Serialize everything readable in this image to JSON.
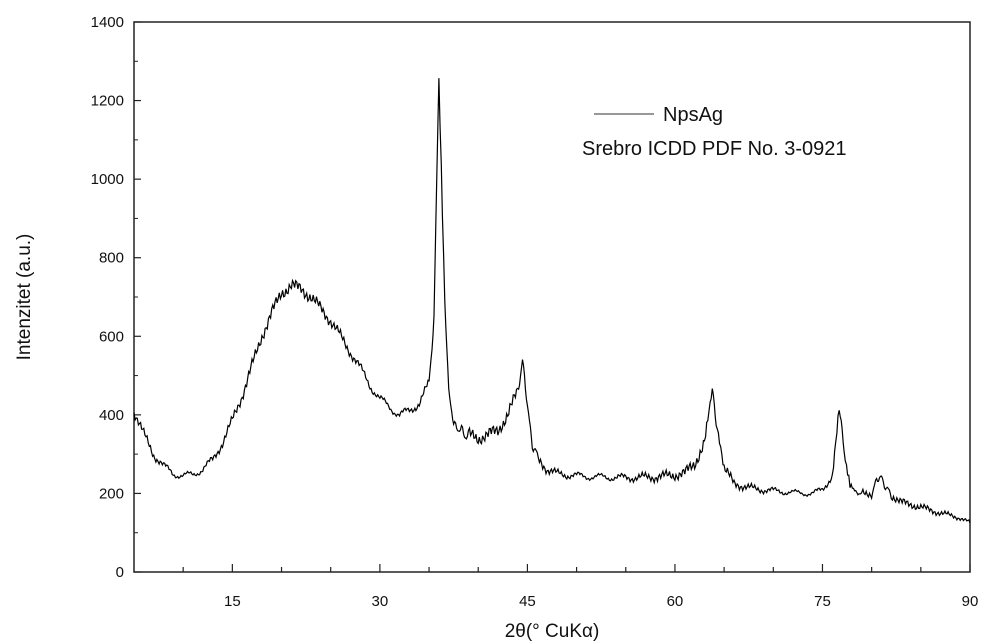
{
  "chart_data": {
    "type": "line",
    "title": "",
    "xlabel": "2θ(° CuKα)",
    "ylabel": "Intenzitet (a.u.)",
    "xlim": [
      5,
      90
    ],
    "ylim": [
      0,
      1400
    ],
    "x_ticks": [
      15,
      30,
      45,
      60,
      75,
      90
    ],
    "y_ticks": [
      0,
      200,
      400,
      600,
      800,
      1000,
      1200,
      1400
    ],
    "grid": false,
    "legend_position": "top-right",
    "series": [
      {
        "name": "NpsAg",
        "color": "#000000",
        "x": [
          5,
          6,
          7,
          8,
          9,
          10,
          11,
          12,
          13,
          14,
          15,
          16,
          17,
          18,
          19,
          20,
          21,
          22,
          23,
          24,
          25,
          26,
          27,
          28,
          29,
          30,
          31,
          32,
          33,
          34,
          35,
          35.5,
          36,
          36.6,
          37,
          37.5,
          38,
          38.5,
          39,
          40,
          41,
          42,
          43,
          44,
          44.5,
          45,
          45.5,
          46,
          47,
          48,
          50,
          52,
          55,
          58,
          60,
          61,
          62,
          63,
          63.8,
          64.3,
          65,
          66,
          68,
          70,
          72,
          74,
          75,
          76,
          76.7,
          77.2,
          77.8,
          78.5,
          79,
          80,
          80.5,
          81,
          81.5,
          82,
          83,
          85,
          87,
          89,
          90
        ],
        "y": [
          410,
          350,
          300,
          270,
          250,
          245,
          248,
          262,
          285,
          330,
          385,
          450,
          525,
          600,
          660,
          710,
          730,
          720,
          700,
          670,
          640,
          600,
          560,
          520,
          475,
          440,
          420,
          400,
          410,
          430,
          480,
          650,
          1260,
          700,
          450,
          385,
          360,
          355,
          350,
          340,
          350,
          360,
          400,
          460,
          540,
          420,
          330,
          290,
          262,
          250,
          245,
          242,
          240,
          242,
          247,
          252,
          275,
          330,
          455,
          370,
          265,
          225,
          212,
          207,
          202,
          200,
          210,
          245,
          420,
          310,
          225,
          205,
          200,
          200,
          230,
          245,
          210,
          195,
          178,
          165,
          150,
          138,
          125
        ]
      }
    ],
    "legend": [
      "NpsAg",
      "Srebro ICDD PDF No. 3-0921"
    ]
  }
}
